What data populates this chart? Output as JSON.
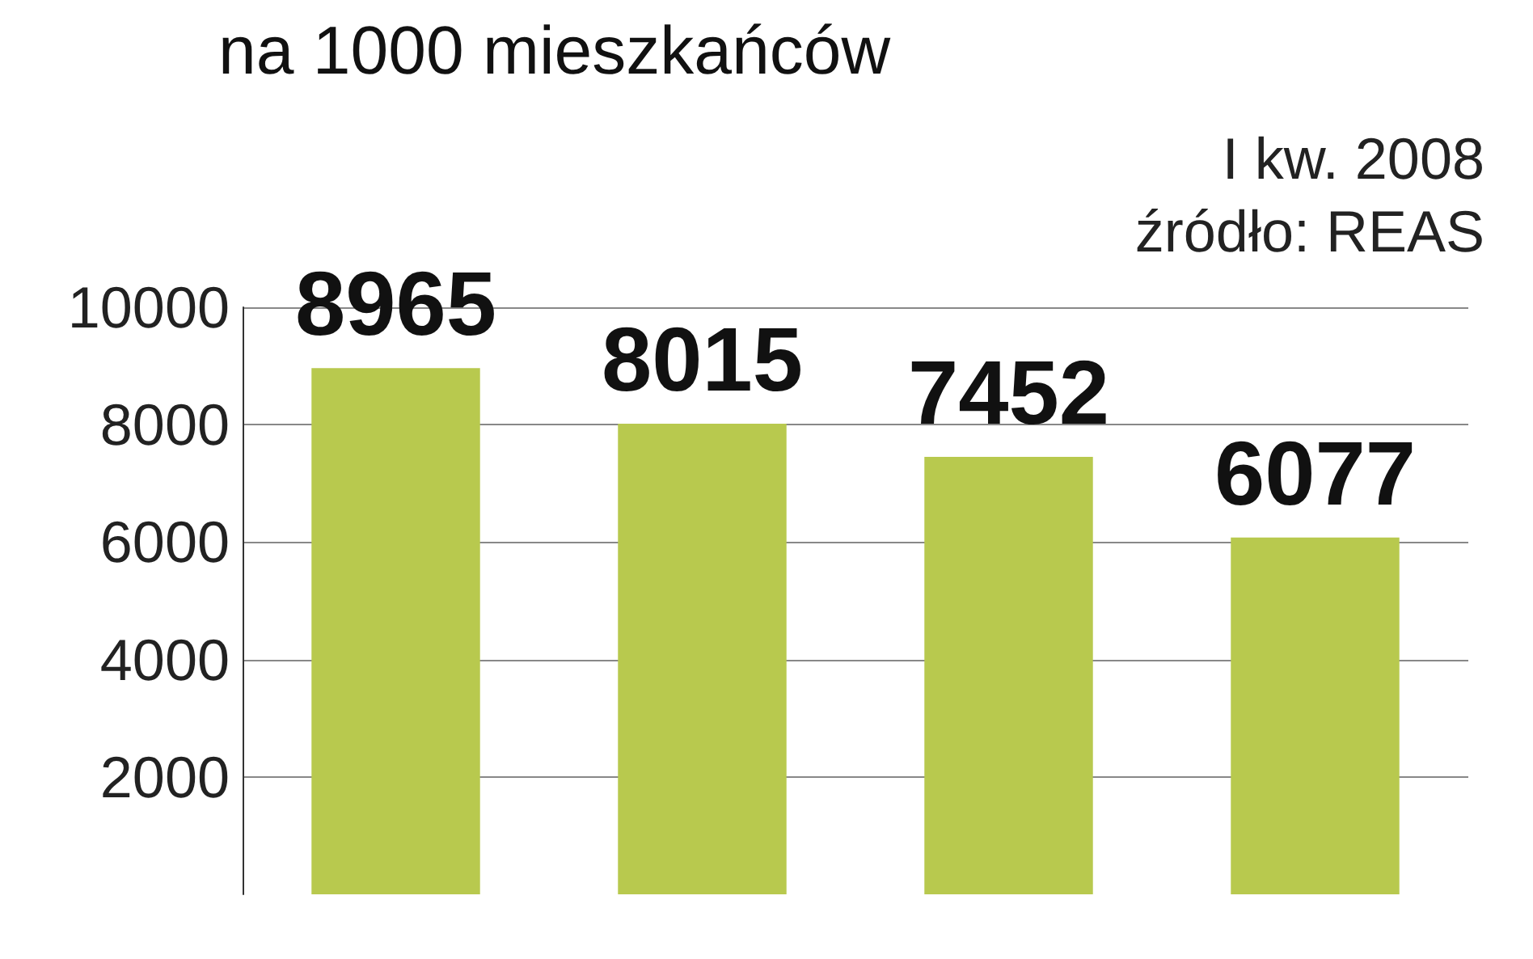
{
  "chart_data": {
    "type": "bar",
    "title": "na 1000 mieszkańców",
    "annotations": [
      "I kw. 2008",
      "źródło: REAS"
    ],
    "categories": [
      null,
      null,
      null,
      null
    ],
    "values": [
      8965,
      8015,
      7452,
      6077
    ],
    "color": "#b8c94e",
    "ylim": [
      0,
      10000
    ],
    "yticks": [
      2000,
      4000,
      6000,
      8000,
      10000
    ],
    "grid": "y",
    "data_labels": true
  }
}
